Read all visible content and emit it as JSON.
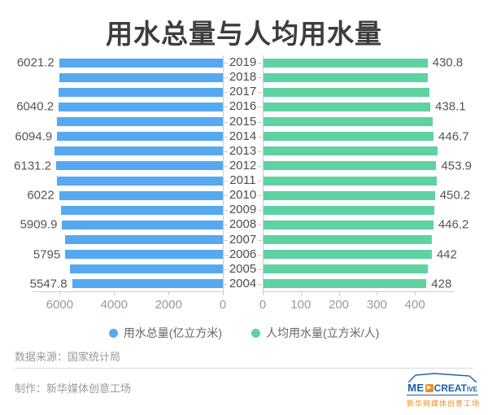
{
  "title": "用水总量与人均用水量",
  "chart_data": {
    "type": "bar",
    "orientation": "horizontal",
    "layout": "bidirectional-tornado",
    "grid": false,
    "legend_position": "bottom",
    "categories": [
      "2019",
      "2018",
      "2017",
      "2016",
      "2015",
      "2014",
      "2013",
      "2012",
      "2011",
      "2010",
      "2009",
      "2008",
      "2007",
      "2006",
      "2005",
      "2004"
    ],
    "series": [
      {
        "name": "用水总量(亿立方米)",
        "side": "left",
        "color": "#56a9f0",
        "values": [
          6021.2,
          6015.5,
          6043.4,
          6040.2,
          6103.2,
          6094.9,
          6183.4,
          6131.2,
          6107.2,
          6022,
          5965.2,
          5909.9,
          5818.7,
          5795,
          5633,
          5547.8
        ],
        "data_labels": {
          "2019": "6021.2",
          "2016": "6040.2",
          "2014": "6094.9",
          "2012": "6131.2",
          "2010": "6022",
          "2008": "5909.9",
          "2006": "5795",
          "2004": "5547.8"
        },
        "axis": {
          "ticks": [
            6000,
            4000,
            2000,
            0
          ],
          "max": 7000,
          "reversed": true
        }
      },
      {
        "name": "人均用水量(立方米/人)",
        "side": "right",
        "color": "#5fd2a2",
        "values": [
          430.8,
          432.1,
          435.9,
          438.1,
          445.1,
          446.7,
          456.7,
          453.9,
          454.4,
          450.2,
          448,
          446.2,
          441.5,
          442,
          432.1,
          428
        ],
        "data_labels": {
          "2019": "430.8",
          "2016": "438.1",
          "2014": "446.7",
          "2012": "453.9",
          "2010": "450.2",
          "2008": "446.2",
          "2006": "442",
          "2004": "428"
        },
        "axis": {
          "ticks": [
            0,
            100,
            200,
            300,
            400
          ],
          "max": 500
        }
      }
    ]
  },
  "footer": {
    "source": "数据来源：国家统计局",
    "credit": "制作：新华媒体创意工场"
  },
  "logo": {
    "en_me": "ME",
    "en_create": "CREAT",
    "en_ive": "IVE",
    "play_icon": "▶",
    "cn": "新华网媒体创意工场",
    "blue": "#1c5fa8",
    "orange": "#f08c1e"
  }
}
